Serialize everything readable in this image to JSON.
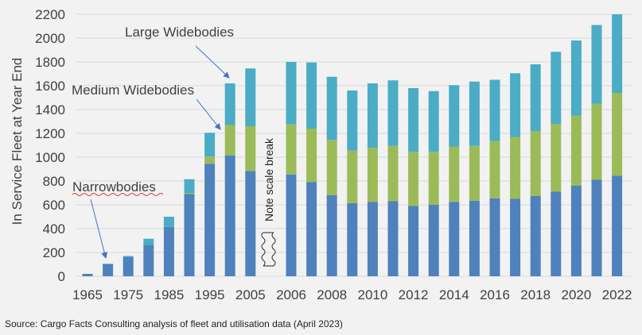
{
  "chart_data": {
    "type": "bar",
    "stacked": true,
    "ylabel": "In Service Fleet at Year End",
    "ylim": [
      0,
      2200
    ],
    "yticks": [
      0,
      200,
      400,
      600,
      800,
      1000,
      1200,
      1400,
      1600,
      1800,
      2000,
      2200
    ],
    "grid": true,
    "legend": "none",
    "categories": [
      "1965",
      "1970",
      "1975",
      "1980",
      "1985",
      "1990",
      "1995",
      "2000",
      "2005",
      "2006",
      "2007",
      "2008",
      "2009",
      "2010",
      "2011",
      "2012",
      "2013",
      "2014",
      "2015",
      "2016",
      "2017",
      "2018",
      "2019",
      "2020",
      "2021",
      "2022"
    ],
    "xtick_labels": [
      "1965",
      "1975",
      "1985",
      "1995",
      "2005",
      "2006",
      "2008",
      "2010",
      "2012",
      "2014",
      "2016",
      "2018",
      "2020",
      "2022"
    ],
    "series": [
      {
        "name": "Narrowbodies",
        "color": "#4f81bd",
        "values": [
          20,
          100,
          160,
          260,
          415,
          690,
          945,
          1015,
          885,
          855,
          790,
          680,
          615,
          625,
          630,
          590,
          600,
          625,
          635,
          655,
          650,
          675,
          710,
          760,
          810,
          845
        ]
      },
      {
        "name": "Medium Widebodies",
        "color": "#9bbb59",
        "values": [
          0,
          0,
          0,
          0,
          0,
          10,
          60,
          255,
          375,
          420,
          450,
          465,
          440,
          455,
          465,
          455,
          445,
          465,
          460,
          480,
          520,
          545,
          570,
          590,
          640,
          695
        ]
      },
      {
        "name": "Large Widebodies",
        "color": "#4bacc6",
        "values": [
          0,
          5,
          10,
          55,
          85,
          115,
          200,
          350,
          485,
          525,
          555,
          530,
          505,
          540,
          550,
          535,
          510,
          515,
          540,
          515,
          535,
          560,
          605,
          630,
          660,
          660
        ]
      }
    ],
    "annotations": [
      "Large Widebodies",
      "Medium Widebodies",
      "Narrowbodies",
      "Note scale break"
    ],
    "source": "Source: Cargo Facts Consulting analysis of fleet and utilisation data (April 2023)"
  }
}
